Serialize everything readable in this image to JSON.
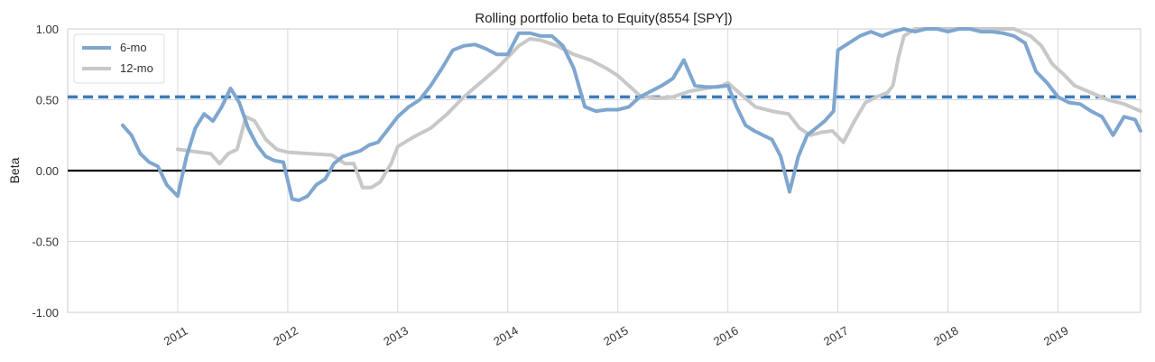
{
  "chart_data": {
    "type": "line",
    "title": "Rolling portfolio beta to Equity(8554 [SPY])",
    "xlabel": "",
    "ylabel": "Beta",
    "xlim": [
      2010.0,
      2019.75
    ],
    "ylim": [
      -1.0,
      1.0
    ],
    "x_ticks": [
      2011,
      2012,
      2013,
      2014,
      2015,
      2016,
      2017,
      2018,
      2019
    ],
    "x_tick_labels": [
      "2011",
      "2012",
      "2013",
      "2014",
      "2015",
      "2016",
      "2017",
      "2018",
      "2019"
    ],
    "y_ticks": [
      1.0,
      0.5,
      0.0,
      -0.5,
      -1.0
    ],
    "y_tick_labels": [
      "1.00",
      "0.50",
      "0.00",
      "-0.50",
      "-1.00"
    ],
    "grid": true,
    "legend_position": "top-left",
    "mean_line": {
      "y": 0.52,
      "color": "#3a7bbd",
      "style": "dashed"
    },
    "zero_line": {
      "y": 0.0,
      "color": "#000000"
    },
    "series": [
      {
        "name": "6-mo",
        "color": "#7ea6cf",
        "x": [
          2010.5,
          2010.58,
          2010.66,
          2010.74,
          2010.82,
          2010.9,
          2011.0,
          2011.08,
          2011.16,
          2011.24,
          2011.32,
          2011.4,
          2011.48,
          2011.56,
          2011.64,
          2011.72,
          2011.8,
          2011.88,
          2011.96,
          2012.04,
          2012.1,
          2012.18,
          2012.26,
          2012.34,
          2012.42,
          2012.5,
          2012.58,
          2012.66,
          2012.74,
          2012.82,
          2012.9,
          2013.0,
          2013.1,
          2013.2,
          2013.3,
          2013.4,
          2013.5,
          2013.6,
          2013.7,
          2013.8,
          2013.9,
          2014.0,
          2014.1,
          2014.2,
          2014.3,
          2014.4,
          2014.5,
          2014.6,
          2014.7,
          2014.8,
          2014.9,
          2015.0,
          2015.1,
          2015.2,
          2015.3,
          2015.4,
          2015.5,
          2015.6,
          2015.7,
          2015.8,
          2015.9,
          2016.0,
          2016.08,
          2016.16,
          2016.24,
          2016.32,
          2016.4,
          2016.48,
          2016.56,
          2016.64,
          2016.72,
          2016.8,
          2016.88,
          2016.96,
          2017.0,
          2017.1,
          2017.2,
          2017.3,
          2017.4,
          2017.5,
          2017.6,
          2017.7,
          2017.8,
          2017.9,
          2018.0,
          2018.1,
          2018.2,
          2018.3,
          2018.4,
          2018.5,
          2018.6,
          2018.7,
          2018.8,
          2018.9,
          2019.0,
          2019.1,
          2019.2,
          2019.3,
          2019.4,
          2019.5,
          2019.6,
          2019.7,
          2019.75
        ],
        "y": [
          0.32,
          0.25,
          0.12,
          0.06,
          0.03,
          -0.1,
          -0.18,
          0.1,
          0.3,
          0.4,
          0.35,
          0.45,
          0.58,
          0.48,
          0.3,
          0.18,
          0.1,
          0.07,
          0.06,
          -0.2,
          -0.21,
          -0.18,
          -0.1,
          -0.06,
          0.05,
          0.1,
          0.12,
          0.14,
          0.18,
          0.2,
          0.28,
          0.38,
          0.45,
          0.5,
          0.6,
          0.72,
          0.85,
          0.88,
          0.89,
          0.86,
          0.82,
          0.82,
          0.97,
          0.97,
          0.95,
          0.95,
          0.88,
          0.72,
          0.45,
          0.42,
          0.43,
          0.43,
          0.45,
          0.52,
          0.56,
          0.6,
          0.65,
          0.78,
          0.6,
          0.59,
          0.59,
          0.6,
          0.45,
          0.32,
          0.28,
          0.25,
          0.22,
          0.1,
          -0.15,
          0.1,
          0.25,
          0.3,
          0.35,
          0.42,
          0.85,
          0.9,
          0.95,
          0.98,
          0.95,
          0.98,
          1.0,
          0.98,
          1.0,
          1.0,
          0.98,
          1.0,
          1.0,
          0.98,
          0.98,
          0.97,
          0.95,
          0.9,
          0.7,
          0.62,
          0.52,
          0.48,
          0.47,
          0.42,
          0.38,
          0.25,
          0.38,
          0.36,
          0.28
        ]
      },
      {
        "name": "12-mo",
        "color": "#c8c8c8",
        "x": [
          2011.0,
          2011.1,
          2011.2,
          2011.3,
          2011.38,
          2011.46,
          2011.54,
          2011.62,
          2011.7,
          2011.8,
          2011.9,
          2012.0,
          2012.2,
          2012.4,
          2012.52,
          2012.6,
          2012.68,
          2012.76,
          2012.84,
          2012.94,
          2013.0,
          2013.15,
          2013.3,
          2013.45,
          2013.6,
          2013.75,
          2013.9,
          2014.0,
          2014.1,
          2014.2,
          2014.3,
          2014.45,
          2014.6,
          2014.75,
          2014.9,
          2015.0,
          2015.1,
          2015.2,
          2015.35,
          2015.5,
          2015.65,
          2015.8,
          2015.95,
          2016.0,
          2016.1,
          2016.25,
          2016.4,
          2016.55,
          2016.65,
          2016.75,
          2016.85,
          2016.95,
          2017.05,
          2017.15,
          2017.25,
          2017.35,
          2017.45,
          2017.5,
          2017.55,
          2017.6,
          2017.7,
          2017.8,
          2017.9,
          2018.0,
          2018.1,
          2018.2,
          2018.3,
          2018.45,
          2018.6,
          2018.75,
          2018.85,
          2018.95,
          2019.05,
          2019.15,
          2019.3,
          2019.45,
          2019.6,
          2019.75
        ],
        "y": [
          0.15,
          0.14,
          0.13,
          0.12,
          0.05,
          0.12,
          0.15,
          0.38,
          0.35,
          0.22,
          0.15,
          0.13,
          0.12,
          0.11,
          0.05,
          0.05,
          -0.12,
          -0.12,
          -0.08,
          0.05,
          0.17,
          0.24,
          0.3,
          0.4,
          0.52,
          0.62,
          0.72,
          0.8,
          0.88,
          0.93,
          0.92,
          0.88,
          0.82,
          0.78,
          0.72,
          0.67,
          0.6,
          0.53,
          0.51,
          0.52,
          0.56,
          0.58,
          0.6,
          0.62,
          0.55,
          0.45,
          0.42,
          0.4,
          0.3,
          0.25,
          0.27,
          0.28,
          0.2,
          0.35,
          0.48,
          0.52,
          0.55,
          0.6,
          0.8,
          0.95,
          1.0,
          1.0,
          1.0,
          1.0,
          1.0,
          1.0,
          1.0,
          1.0,
          1.0,
          0.95,
          0.88,
          0.75,
          0.68,
          0.6,
          0.55,
          0.5,
          0.47,
          0.42
        ]
      }
    ]
  }
}
